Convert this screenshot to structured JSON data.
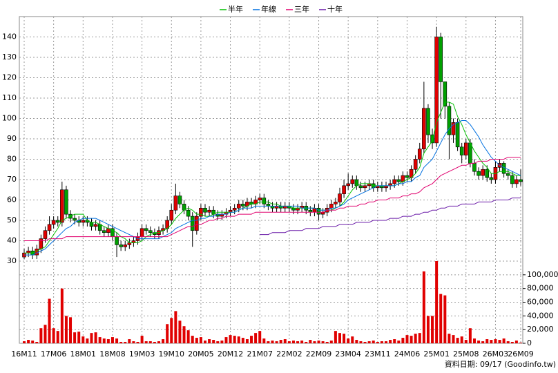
{
  "chart_data": {
    "type": "candlestick",
    "categories": [
      "16M11",
      null,
      null,
      null,
      null,
      null,
      null,
      "17M06",
      null,
      null,
      null,
      null,
      null,
      null,
      "18M01",
      null,
      null,
      null,
      null,
      null,
      null,
      "18M08",
      null,
      null,
      null,
      null,
      null,
      null,
      "19M03",
      null,
      null,
      null,
      null,
      null,
      null,
      "19M10",
      null,
      null,
      null,
      null,
      null,
      null,
      "20M05",
      null,
      null,
      null,
      null,
      null,
      null,
      "20M12",
      null,
      null,
      null,
      null,
      null,
      null,
      "21M07",
      null,
      null,
      null,
      null,
      null,
      null,
      "22M02",
      null,
      null,
      null,
      null,
      null,
      null,
      "22M09",
      null,
      null,
      null,
      null,
      null,
      null,
      "23M04",
      null,
      null,
      null,
      null,
      null,
      null,
      "23M11",
      null,
      null,
      null,
      null,
      null,
      null,
      "24M06",
      null,
      null,
      null,
      null,
      null,
      null,
      "25M01",
      null,
      null,
      null,
      null,
      null,
      null,
      "25M08",
      null,
      null,
      null,
      null,
      null,
      null,
      "26M03",
      null,
      null,
      null,
      null,
      null,
      "26M09"
    ],
    "open": [
      32,
      34,
      35,
      33,
      36,
      41,
      45,
      48,
      50,
      49,
      65,
      53,
      51,
      50,
      49,
      50,
      49,
      47,
      48,
      45,
      44,
      46,
      42,
      38,
      37,
      38,
      39,
      40,
      42,
      46,
      45,
      44,
      43,
      45,
      46,
      50,
      55,
      62,
      58,
      55,
      52,
      45,
      52,
      56,
      54,
      55,
      53,
      52,
      53,
      54,
      55,
      56,
      58,
      57,
      59,
      58,
      60,
      61,
      58,
      57,
      56,
      57,
      56,
      57,
      56,
      55,
      56,
      57,
      55,
      54,
      56,
      53,
      54,
      56,
      58,
      59,
      63,
      67,
      68,
      70,
      67,
      66,
      67,
      68,
      66,
      67,
      66,
      67,
      68,
      70,
      69,
      72,
      71,
      75,
      80,
      85,
      105,
      92,
      88,
      140,
      118,
      106,
      92,
      98,
      86,
      82,
      88,
      78,
      74,
      72,
      75,
      71,
      70,
      76,
      78,
      73,
      72,
      68,
      70
    ],
    "high": [
      36,
      37,
      37,
      38,
      43,
      47,
      52,
      52,
      52,
      69,
      67,
      55,
      53,
      52,
      52,
      52,
      51,
      50,
      50,
      47,
      48,
      48,
      44,
      40,
      40,
      41,
      42,
      44,
      48,
      48,
      47,
      46,
      47,
      48,
      52,
      58,
      68,
      64,
      60,
      57,
      54,
      54,
      58,
      58,
      57,
      57,
      55,
      55,
      56,
      57,
      58,
      60,
      60,
      61,
      61,
      62,
      63,
      63,
      60,
      59,
      59,
      59,
      59,
      59,
      58,
      58,
      59,
      59,
      57,
      58,
      58,
      56,
      58,
      60,
      61,
      66,
      70,
      73,
      72,
      72,
      69,
      69,
      70,
      70,
      69,
      69,
      69,
      70,
      72,
      72,
      74,
      74,
      77,
      82,
      88,
      118,
      107,
      95,
      145,
      142,
      118,
      108,
      100,
      100,
      88,
      90,
      90,
      80,
      76,
      77,
      77,
      73,
      79,
      80,
      79,
      75,
      74,
      72,
      75
    ],
    "low": [
      31,
      32,
      31,
      31,
      34,
      39,
      43,
      46,
      47,
      47,
      51,
      49,
      48,
      47,
      47,
      47,
      45,
      45,
      43,
      42,
      42,
      40,
      32,
      35,
      35,
      36,
      37,
      38,
      40,
      43,
      42,
      41,
      41,
      43,
      44,
      48,
      53,
      56,
      53,
      50,
      37,
      43,
      50,
      52,
      52,
      51,
      50,
      50,
      51,
      52,
      53,
      54,
      55,
      55,
      56,
      56,
      58,
      56,
      55,
      54,
      54,
      54,
      54,
      54,
      53,
      53,
      54,
      53,
      52,
      52,
      50,
      51,
      52,
      54,
      56,
      57,
      61,
      65,
      66,
      65,
      64,
      64,
      65,
      64,
      64,
      64,
      64,
      65,
      66,
      67,
      67,
      69,
      69,
      73,
      78,
      83,
      88,
      85,
      86,
      100,
      100,
      80,
      88,
      84,
      78,
      80,
      76,
      72,
      70,
      70,
      69,
      68,
      68,
      74,
      71,
      70,
      66,
      66,
      67
    ],
    "close": [
      34,
      35,
      33,
      36,
      41,
      45,
      48,
      50,
      49,
      65,
      53,
      51,
      50,
      49,
      50,
      49,
      47,
      48,
      45,
      44,
      46,
      42,
      38,
      37,
      38,
      39,
      40,
      42,
      46,
      45,
      44,
      43,
      45,
      46,
      50,
      55,
      62,
      58,
      55,
      52,
      45,
      52,
      56,
      54,
      55,
      53,
      52,
      53,
      54,
      55,
      56,
      58,
      57,
      59,
      58,
      60,
      61,
      58,
      57,
      56,
      57,
      56,
      57,
      56,
      55,
      56,
      57,
      55,
      54,
      56,
      53,
      54,
      56,
      58,
      59,
      63,
      67,
      68,
      70,
      67,
      66,
      67,
      68,
      66,
      67,
      66,
      67,
      68,
      70,
      69,
      72,
      71,
      75,
      80,
      85,
      105,
      92,
      88,
      140,
      118,
      106,
      92,
      98,
      86,
      82,
      88,
      78,
      74,
      72,
      75,
      71,
      70,
      76,
      78,
      73,
      72,
      68,
      70,
      69
    ],
    "up_color": "#e00000",
    "down_color": "#00a000",
    "ylim": [
      30,
      150
    ],
    "yticks": [
      30,
      40,
      50,
      60,
      70,
      80,
      90,
      100,
      110,
      120,
      130,
      140
    ],
    "grid": true,
    "series": [
      {
        "name": "半年",
        "color": "#00c000",
        "values": [
          34,
          34,
          34,
          35,
          36,
          37,
          40,
          43,
          46,
          50,
          51,
          52,
          53,
          53,
          53,
          50,
          49,
          49,
          48,
          47,
          46,
          45,
          44,
          42,
          41,
          39,
          39,
          39,
          40,
          42,
          43,
          44,
          44,
          45,
          46,
          48,
          51,
          53,
          55,
          56,
          55,
          53,
          53,
          52,
          52,
          53,
          54,
          54,
          54,
          54,
          54,
          55,
          56,
          57,
          58,
          58,
          59,
          59,
          59,
          58,
          58,
          57,
          57,
          57,
          56,
          56,
          56,
          56,
          56,
          56,
          55,
          55,
          55,
          55,
          56,
          57,
          59,
          62,
          65,
          67,
          68,
          68,
          68,
          67,
          67,
          67,
          67,
          67,
          67,
          68,
          69,
          70,
          71,
          73,
          76,
          83,
          86,
          89,
          98,
          103,
          108,
          108,
          107,
          101,
          97,
          92,
          88,
          84,
          81,
          78,
          76,
          73,
          73,
          74,
          74,
          74,
          73,
          72,
          72
        ]
      },
      {
        "name": "年線",
        "color": "#0070e0",
        "values": [
          33,
          33,
          33,
          34,
          35,
          36,
          38,
          40,
          42,
          44,
          46,
          47,
          49,
          50,
          51,
          51,
          51,
          51,
          50,
          49,
          48,
          47,
          46,
          45,
          44,
          43,
          42,
          41,
          41,
          41,
          41,
          41,
          41,
          42,
          43,
          44,
          46,
          47,
          48,
          49,
          50,
          50,
          51,
          51,
          52,
          52,
          53,
          53,
          53,
          54,
          54,
          55,
          56,
          56,
          56,
          57,
          57,
          57,
          57,
          57,
          57,
          57,
          57,
          57,
          57,
          57,
          56,
          56,
          56,
          56,
          55,
          55,
          55,
          56,
          56,
          57,
          58,
          60,
          61,
          62,
          63,
          64,
          65,
          66,
          67,
          67,
          67,
          67,
          67,
          68,
          68,
          69,
          69,
          71,
          72,
          76,
          78,
          80,
          84,
          88,
          92,
          95,
          97,
          98,
          99,
          99,
          97,
          94,
          91,
          87,
          84,
          81,
          79,
          77,
          76,
          75,
          74,
          73,
          72
        ]
      },
      {
        "name": "三年",
        "color": "#e0006e",
        "values": [
          40,
          40,
          40,
          40,
          40,
          40,
          41,
          41,
          41,
          41,
          42,
          42,
          42,
          42,
          42,
          42,
          42,
          42,
          42,
          42,
          42,
          42,
          42,
          42,
          42,
          42,
          42,
          42,
          42,
          42,
          42,
          42,
          42,
          42,
          42,
          43,
          44,
          45,
          46,
          47,
          47,
          48,
          48,
          49,
          50,
          50,
          51,
          51,
          52,
          52,
          52,
          53,
          53,
          53,
          53,
          54,
          54,
          54,
          54,
          54,
          54,
          54,
          54,
          54,
          54,
          54,
          54,
          54,
          54,
          54,
          54,
          54,
          55,
          55,
          55,
          56,
          56,
          57,
          57,
          57,
          58,
          58,
          59,
          59,
          60,
          60,
          60,
          61,
          61,
          61,
          62,
          62,
          63,
          63,
          64,
          66,
          67,
          68,
          70,
          72,
          73,
          74,
          75,
          76,
          77,
          77,
          78,
          78,
          79,
          79,
          79,
          80,
          80,
          80,
          80,
          81,
          81,
          81,
          81
        ]
      },
      {
        "name": "十年",
        "color": "#6a1aa8",
        "values": [
          null,
          null,
          null,
          null,
          null,
          null,
          null,
          null,
          null,
          null,
          null,
          null,
          null,
          null,
          null,
          null,
          null,
          null,
          null,
          null,
          null,
          null,
          null,
          null,
          null,
          null,
          null,
          null,
          null,
          null,
          null,
          null,
          null,
          null,
          null,
          null,
          null,
          null,
          null,
          null,
          null,
          null,
          null,
          null,
          null,
          null,
          null,
          null,
          null,
          null,
          null,
          null,
          null,
          null,
          null,
          null,
          43,
          43,
          43,
          44,
          44,
          44,
          44,
          45,
          45,
          45,
          45,
          46,
          46,
          46,
          46,
          47,
          47,
          47,
          47,
          48,
          48,
          48,
          48,
          49,
          49,
          49,
          49,
          50,
          50,
          50,
          50,
          51,
          51,
          51,
          52,
          52,
          52,
          53,
          53,
          54,
          54,
          55,
          55,
          56,
          56,
          57,
          57,
          57,
          58,
          58,
          58,
          58,
          59,
          59,
          59,
          59,
          60,
          60,
          60,
          60,
          61,
          61,
          61
        ]
      }
    ],
    "volume": {
      "color": "#e00000",
      "values": [
        3000,
        5000,
        4000,
        2000,
        22000,
        27000,
        65000,
        22000,
        18000,
        80000,
        40000,
        38000,
        16000,
        17000,
        10000,
        7000,
        15000,
        16000,
        9000,
        7000,
        6000,
        9000,
        7000,
        2000,
        2000,
        6000,
        3000,
        2000,
        11000,
        3000,
        3000,
        2000,
        3000,
        6000,
        28000,
        37000,
        47000,
        33000,
        25000,
        19000,
        11000,
        8000,
        9000,
        4000,
        6000,
        5000,
        3000,
        4000,
        9000,
        12000,
        11000,
        10000,
        8000,
        6000,
        11000,
        15000,
        18000,
        7000,
        3000,
        4000,
        3000,
        5000,
        6000,
        3000,
        4000,
        3000,
        4000,
        2000,
        5000,
        3000,
        4000,
        3000,
        2000,
        4000,
        18000,
        15000,
        14000,
        7000,
        10000,
        5000,
        3000,
        2000,
        3000,
        4000,
        2000,
        3000,
        3000,
        5000,
        6000,
        4000,
        8000,
        12000,
        11000,
        14000,
        15000,
        105000,
        40000,
        40000,
        120000,
        72000,
        70000,
        14000,
        12000,
        8000,
        10000,
        5000,
        22000,
        7000,
        4000,
        3000,
        6000,
        5000,
        6000,
        5000,
        7000,
        3000,
        2000,
        4000,
        1000
      ],
      "ylim": [
        0,
        120000
      ],
      "yticks": [
        0,
        {
          "value": 20000,
          "label": "20,000"
        },
        {
          "value": 40000,
          "label": "40,000"
        },
        {
          "value": 60000,
          "label": "60,000"
        },
        {
          "value": 80000,
          "label": "80,000"
        },
        {
          "value": 100000,
          "label": "100,000"
        }
      ]
    },
    "footnote": "資料日期: 09/17 (Goodinfo.tw)"
  }
}
